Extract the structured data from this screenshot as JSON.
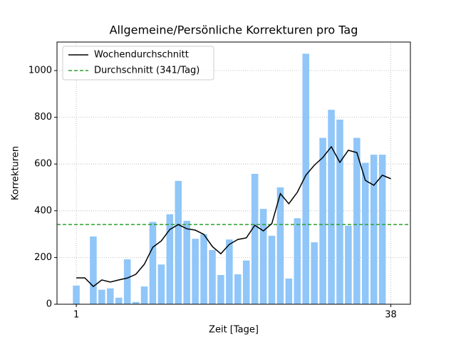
{
  "chart_data": {
    "type": "bar",
    "title": "Allgemeine/Persönliche Korrekturen pro Tag",
    "x_label": "Zeit [Tage]",
    "y_label": "Korrekturen",
    "x": [
      1,
      2,
      3,
      4,
      5,
      6,
      7,
      8,
      9,
      10,
      11,
      12,
      13,
      14,
      15,
      16,
      17,
      18,
      19,
      20,
      21,
      22,
      23,
      24,
      25,
      26,
      27,
      28,
      29,
      30,
      31,
      32,
      33,
      34,
      35,
      36,
      37,
      38
    ],
    "values": [
      80,
      0,
      290,
      62,
      68,
      28,
      192,
      10,
      76,
      352,
      170,
      385,
      528,
      357,
      280,
      300,
      232,
      125,
      277,
      128,
      187,
      558,
      408,
      293,
      500,
      110,
      368,
      1072,
      265,
      712,
      832,
      790,
      336,
      712,
      605,
      640,
      640,
      0
    ],
    "color": "#90c6f8",
    "series": [
      {
        "name": "Wochendurchschnitt",
        "color": "#000000",
        "values": [
          113,
          113,
          76,
          104,
          95,
          104,
          112,
          128,
          171,
          244,
          271,
          320,
          341,
          323,
          317,
          299,
          247,
          216,
          256,
          277,
          284,
          338,
          314,
          345,
          473,
          430,
          479,
          552,
          595,
          628,
          674,
          607,
          659,
          649,
          530,
          509,
          552,
          537
        ]
      }
    ],
    "hlines": [
      {
        "name": "Durchschnitt (341/Tag)",
        "value": 341,
        "color": "#2ca02c"
      }
    ],
    "xlim": [
      -1.27,
      40.3
    ],
    "ylim": [
      0,
      1122
    ],
    "xticks": [
      1,
      38
    ],
    "yticks": [
      0,
      200,
      400,
      600,
      800,
      1000
    ],
    "grid": true,
    "legend": "upper-left"
  }
}
